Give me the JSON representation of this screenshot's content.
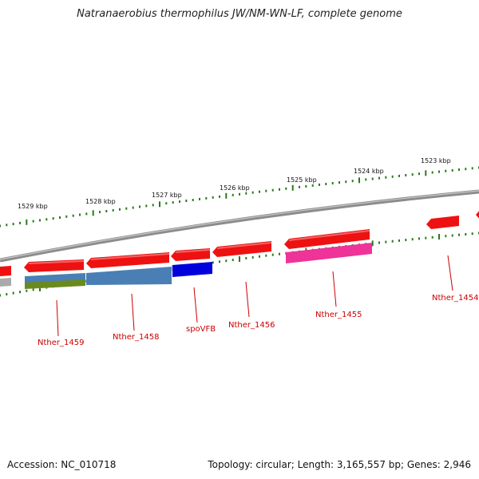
{
  "title": "Natranaerobius thermophilus JW/NM-WN-LF, complete genome",
  "footer": {
    "accession": "Accession: NC_010718",
    "summary": "Topology: circular; Length: 3,165,557 bp; Genes: 2,946"
  },
  "kbp_labels": [
    "1529 kbp",
    "1528 kbp",
    "1527 kbp",
    "1526 kbp",
    "1525 kbp",
    "1524 kbp",
    "1523 kbp"
  ],
  "gene_labels": [
    "Nther_1459",
    "Nther_1458",
    "spoVFB",
    "Nther_1456",
    "Nther_1455",
    "Nther_1454"
  ],
  "colors": {
    "backbone": "#8c8c8c",
    "gene": "#ee1111",
    "tick": "#2a7a1a",
    "label": "#cc0000",
    "cog_blue": "#4a7fb5",
    "cog_olive": "#6b8a1e",
    "cog_darkblue": "#0000dd",
    "cog_pink": "#ee3399",
    "cog_gray": "#aaaaaa"
  }
}
